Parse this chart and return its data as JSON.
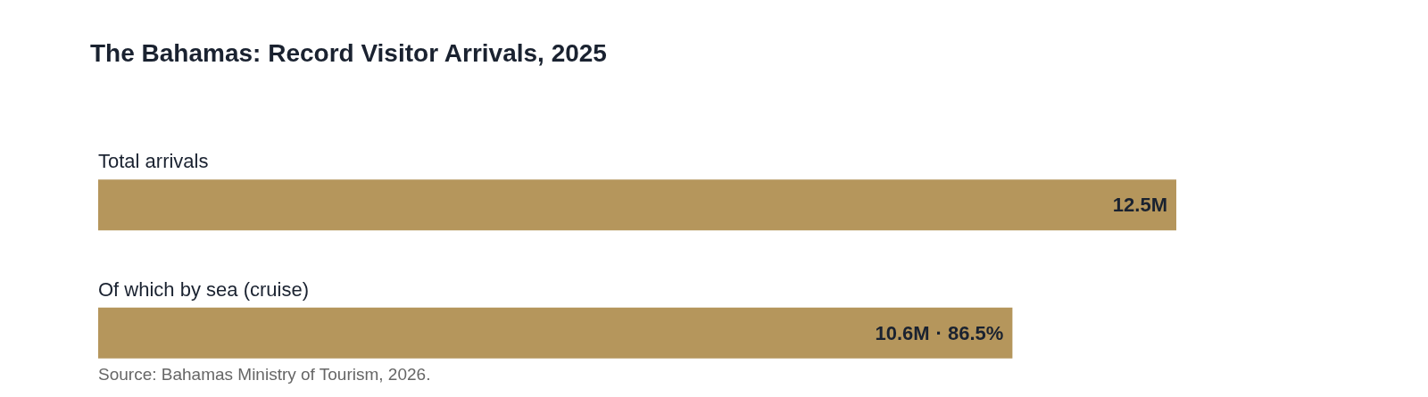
{
  "chart_data": {
    "type": "bar",
    "orientation": "horizontal",
    "title": "The Bahamas: Record Visitor Arrivals, 2025",
    "categories": [
      "Total arrivals",
      "Of which by sea (cruise)"
    ],
    "values": [
      12.5,
      10.6
    ],
    "value_labels": [
      "12.5M",
      "10.6M"
    ],
    "color": "#b5965c",
    "annotations": [
      {
        "text": "· 86.5%",
        "x": 10.6,
        "y": "Of which by sea (cruise)"
      },
      "Source: Bahamas Ministry of Tourism, 2026."
    ]
  }
}
